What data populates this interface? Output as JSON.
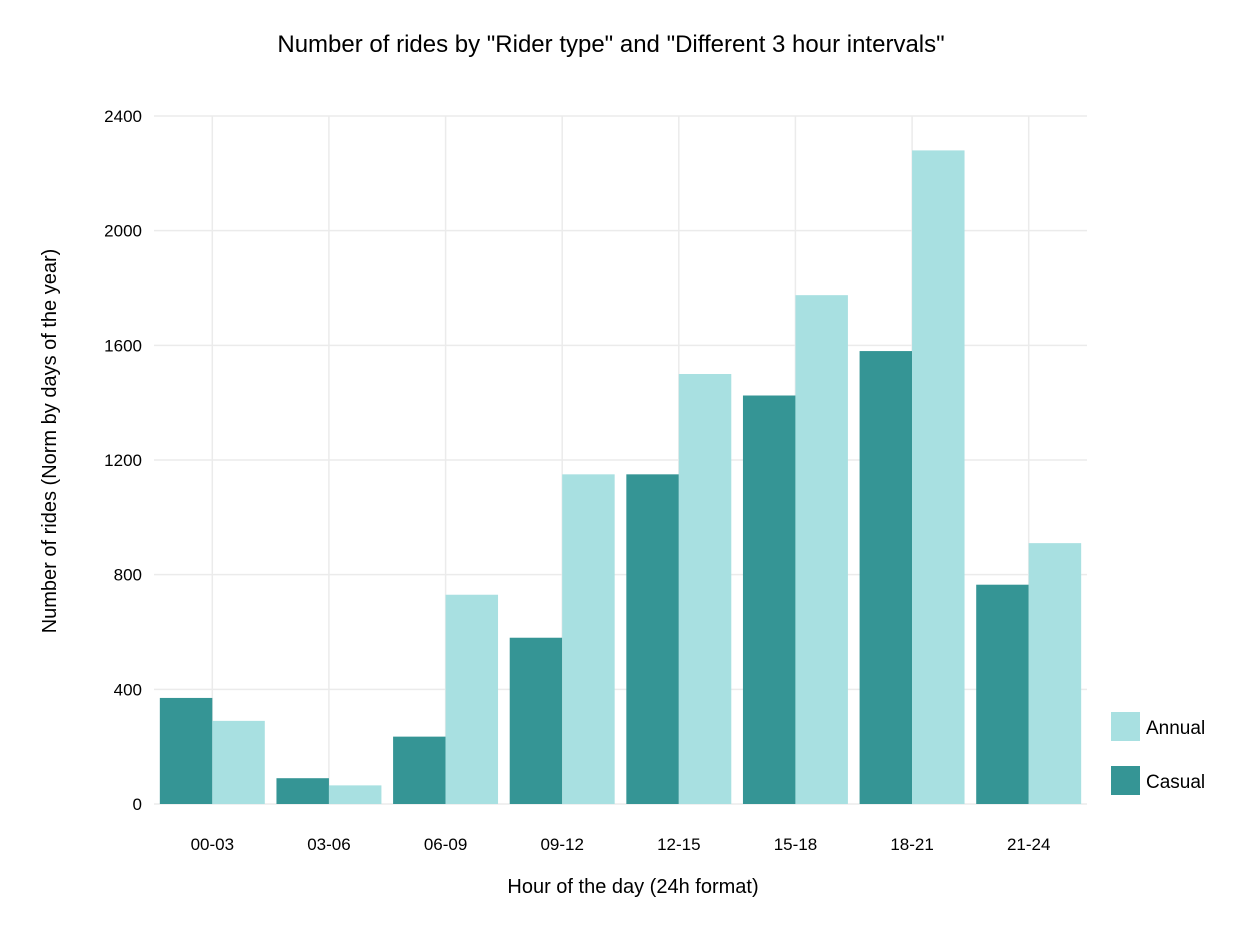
{
  "chart_data": {
    "type": "bar",
    "title": "Number of rides by \"Rider type\" and \"Different 3 hour intervals\"",
    "xlabel": "Hour of the day (24h format)",
    "ylabel": "Number of rides (Norm by days of the year)",
    "categories": [
      "00-03",
      "03-06",
      "06-09",
      "09-12",
      "12-15",
      "15-18",
      "18-21",
      "21-24"
    ],
    "series": [
      {
        "name": "Casual",
        "color": "#359595",
        "values": [
          370,
          90,
          235,
          580,
          1150,
          1425,
          1580,
          765
        ]
      },
      {
        "name": "Annual",
        "color": "#a8e0e1",
        "values": [
          290,
          65,
          730,
          1150,
          1500,
          1775,
          2280,
          910
        ]
      }
    ],
    "ylim": [
      0,
      2400
    ],
    "yticks": [
      0,
      400,
      800,
      1200,
      1600,
      2000,
      2400
    ],
    "grid": true,
    "legend_position": "right",
    "legend_order": [
      "Annual",
      "Casual"
    ]
  }
}
